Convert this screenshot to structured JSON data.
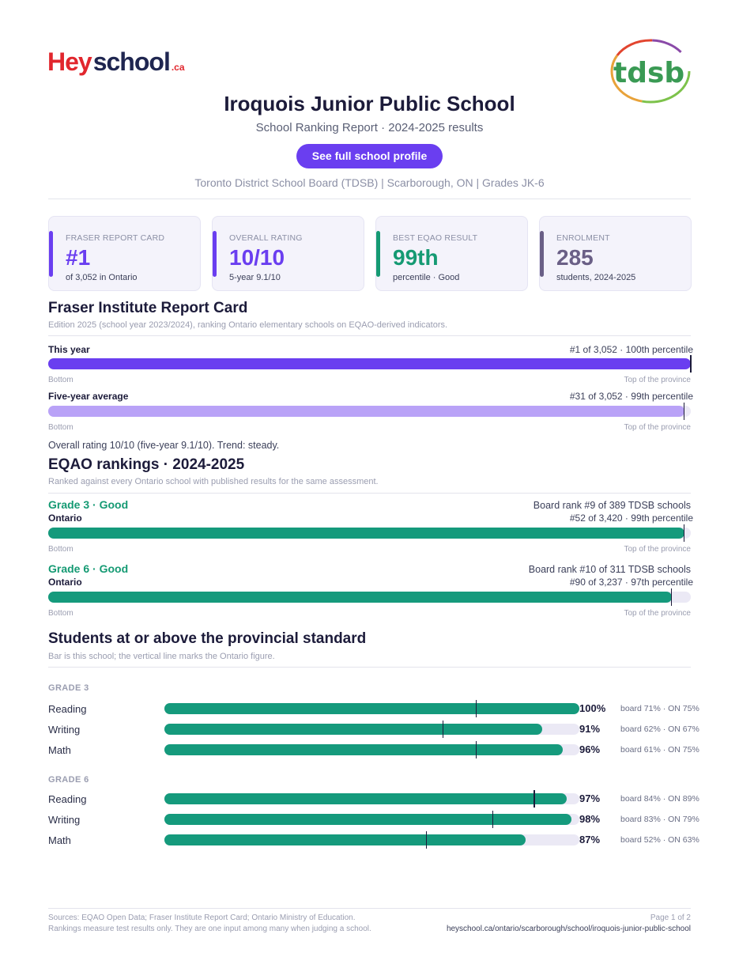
{
  "brand": {
    "hey": "Hey",
    "school": "school",
    "ca": ".ca"
  },
  "board_logo": {
    "text": "tdsb"
  },
  "header": {
    "title": "Iroquois Junior Public School",
    "subtitle": "School Ranking Report  ·  2024-2025 results",
    "cta_label": "See full school profile",
    "meta": "Toronto District School Board (TDSB)  |  Scarborough, ON  |  Grades JK-6"
  },
  "cards": [
    {
      "label": "FRASER REPORT CARD",
      "value": "#1",
      "sub": "of 3,052 in Ontario",
      "color": "#6a3ef0"
    },
    {
      "label": "OVERALL RATING",
      "value": "10/10",
      "sub": "5-year 9.1/10",
      "color": "#6a3ef0"
    },
    {
      "label": "BEST EQAO RESULT",
      "value": "99th",
      "sub": "percentile  ·  Good",
      "color": "#159a73"
    },
    {
      "label": "ENROLMENT",
      "value": "285",
      "sub": "students, 2024-2025",
      "color": "#6a5f86"
    }
  ],
  "fraser": {
    "title": "Fraser Institute Report Card",
    "note": "Edition 2025 (school year 2023/2024), ranking Ontario elementary schools on EQAO-derived indicators.",
    "rows": [
      {
        "label": "This year",
        "right": "#1 of 3,052  ·  100th percentile",
        "percentile": 100,
        "color": "#6a3ef0"
      },
      {
        "label": "Five-year average",
        "right": "#31 of 3,052  ·  99th percentile",
        "percentile": 99,
        "color": "#b9a2f7"
      }
    ],
    "bottom_label": "Bottom",
    "top_label": "Top of the province",
    "summary": "Overall rating 10/10 (five-year 9.1/10). Trend: steady."
  },
  "eqao": {
    "title": "EQAO rankings  ·  2024-2025",
    "note": "Ranked against every Ontario school with published results for the same assessment.",
    "rows": [
      {
        "grade": "Grade 3  ·  Good",
        "board_rank": "Board rank #9 of 389 TDSB schools",
        "scope": "Ontario",
        "right": "#52 of 3,420  ·  99th percentile",
        "percentile": 99
      },
      {
        "grade": "Grade 6  ·  Good",
        "board_rank": "Board rank #10 of 311 TDSB schools",
        "scope": "Ontario",
        "right": "#90 of 3,237  ·  97th percentile",
        "percentile": 97
      }
    ],
    "bottom_label": "Bottom",
    "top_label": "Top of the province",
    "color": "#159a7c"
  },
  "standard": {
    "title": "Students at or above the provincial standard",
    "note": "Bar is this school; the vertical line marks the Ontario figure.",
    "groups": [
      {
        "label": "GRADE 3",
        "subjects": [
          {
            "name": "Reading",
            "school": 100,
            "pct": "100%",
            "board": 71,
            "ontario": 75,
            "cmp": "board 71%  ·  ON 75%"
          },
          {
            "name": "Writing",
            "school": 91,
            "pct": "91%",
            "board": 62,
            "ontario": 67,
            "cmp": "board 62%  ·  ON 67%"
          },
          {
            "name": "Math",
            "school": 96,
            "pct": "96%",
            "board": 61,
            "ontario": 75,
            "cmp": "board 61%  ·  ON 75%"
          }
        ]
      },
      {
        "label": "GRADE 6",
        "subjects": [
          {
            "name": "Reading",
            "school": 97,
            "pct": "97%",
            "board": 84,
            "ontario": 89,
            "cmp": "board 84%  ·  ON 89%"
          },
          {
            "name": "Writing",
            "school": 98,
            "pct": "98%",
            "board": 83,
            "ontario": 79,
            "cmp": "board 83%  ·  ON 79%"
          },
          {
            "name": "Math",
            "school": 87,
            "pct": "87%",
            "board": 52,
            "ontario": 63,
            "cmp": "board 52%  ·  ON 63%"
          }
        ]
      }
    ]
  },
  "footer": {
    "sources": "Sources: EQAO Open Data; Fraser Institute Report Card; Ontario Ministry of Education.",
    "disclaimer": "Rankings measure test results only. They are one input among many when judging a school.",
    "page": "Page 1 of 2",
    "url": "heyschool.ca/ontario/scarborough/school/iroquois-junior-public-school"
  }
}
